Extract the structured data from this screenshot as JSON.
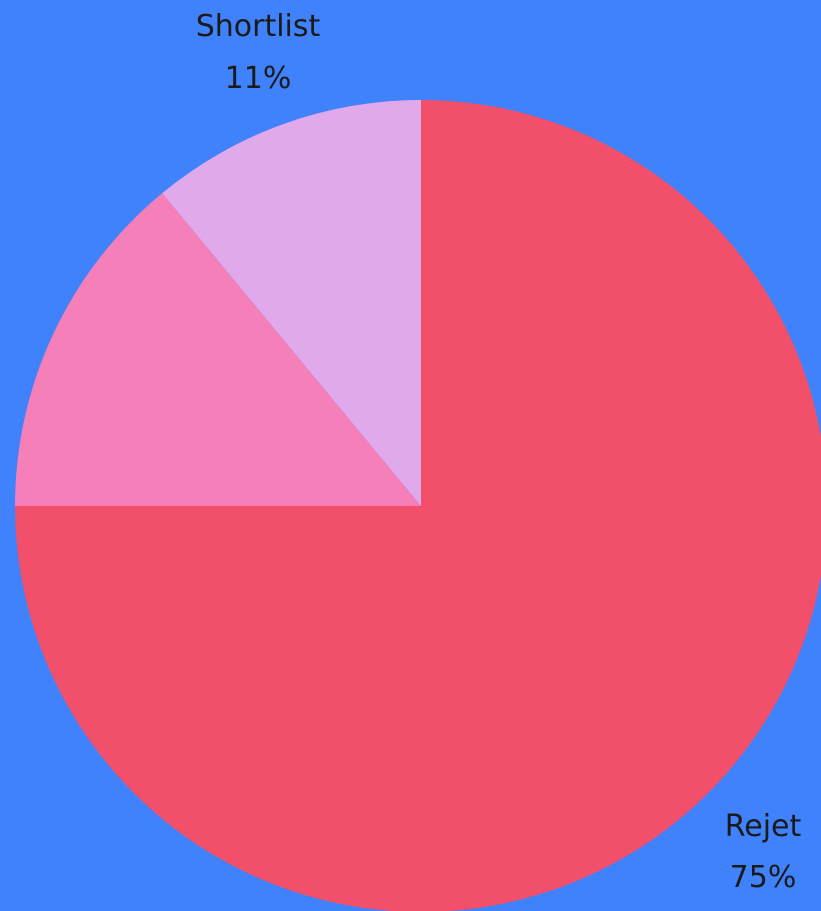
{
  "chart_data": {
    "type": "pie",
    "title": "",
    "start_angle_deg": 0,
    "direction": "clockwise",
    "slices": [
      {
        "name": "Rejet",
        "value": 75,
        "label": "Rejet",
        "value_label": "75%",
        "color": "#f24f6b"
      },
      {
        "name": "",
        "value": 14,
        "label": "",
        "value_label": "",
        "color": "#f57fb8"
      },
      {
        "name": "Shortlist",
        "value": 11,
        "label": "Shortlist",
        "value_label": "11%",
        "color": "#e0a9ec"
      }
    ]
  },
  "colors": {
    "background": "#3f82fc",
    "label_text": "#1a1a1a"
  }
}
